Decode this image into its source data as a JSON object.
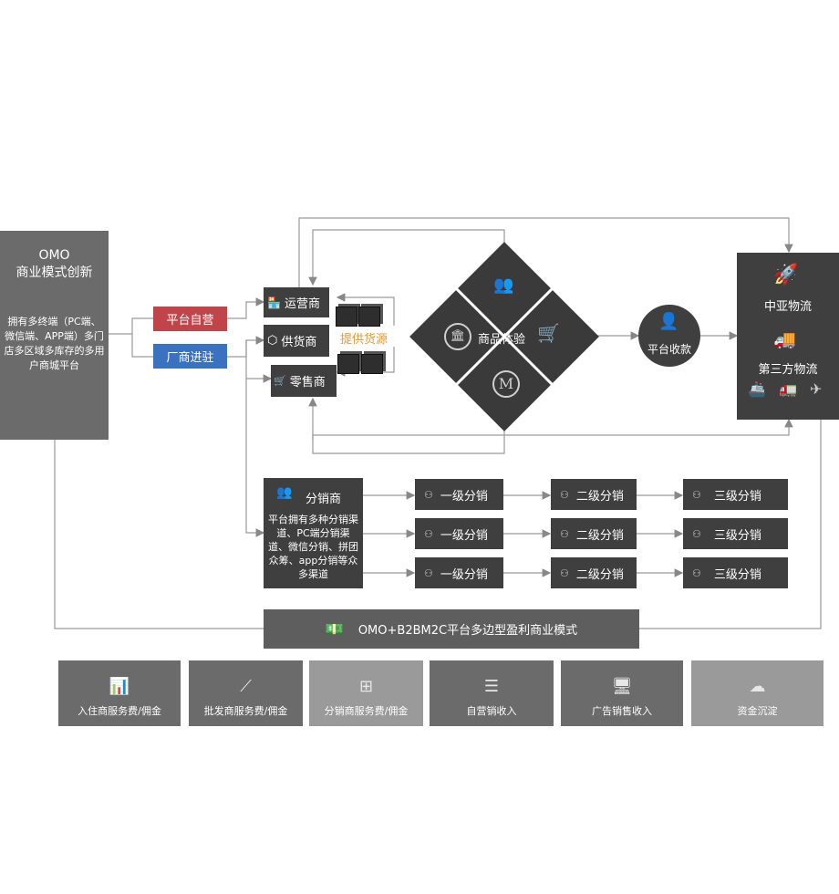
{
  "omo": {
    "title_line1": "OMO",
    "title_line2": "商业模式创新",
    "desc": "拥有多终端（PC端、微信端、APP端）多门店多区域多库存的多用户商城平台"
  },
  "entry": {
    "platform_self": "平台自营",
    "manufacturer": "厂商进驻"
  },
  "roles": {
    "operator": "运营商",
    "supplier": "供货商",
    "retailer": "零售商",
    "supply_label": "提供货源"
  },
  "center": {
    "experience": "商品体验",
    "collect": "平台收款"
  },
  "logistics": {
    "zhongya": "中亚物流",
    "third_party": "第三方物流"
  },
  "distributor": {
    "title": "分销商",
    "desc": "平台拥有多种分销渠道、PC端分销渠道、微信分销、拼团众筹、app分销等众多渠道"
  },
  "levels": {
    "row1": [
      "一级分销",
      "二级分销",
      "三级分销"
    ],
    "row2": [
      "一级分销",
      "二级分销",
      "三级分销"
    ],
    "row3": [
      "一级分销",
      "二级分销",
      "三级分销"
    ]
  },
  "model": {
    "title": "OMO+B2BM2C平台多边型盈利商业模式"
  },
  "revenue": [
    {
      "label": "入住商服务费/佣金",
      "icon": "chart-clock-icon",
      "color": "#6b6b6b"
    },
    {
      "label": "批发商服务费/佣金",
      "icon": "network-icon",
      "color": "#6b6b6b"
    },
    {
      "label": "分销商服务费/佣金",
      "icon": "org-chart-icon",
      "color": "#9a9a9a"
    },
    {
      "label": "自营销收入",
      "icon": "list-icon",
      "color": "#6b6b6b"
    },
    {
      "label": "广告销售收入",
      "icon": "monitor-icon",
      "color": "#6b6b6b"
    },
    {
      "label": "资金沉淀",
      "icon": "cloud-icon",
      "color": "#9a9a9a"
    }
  ]
}
